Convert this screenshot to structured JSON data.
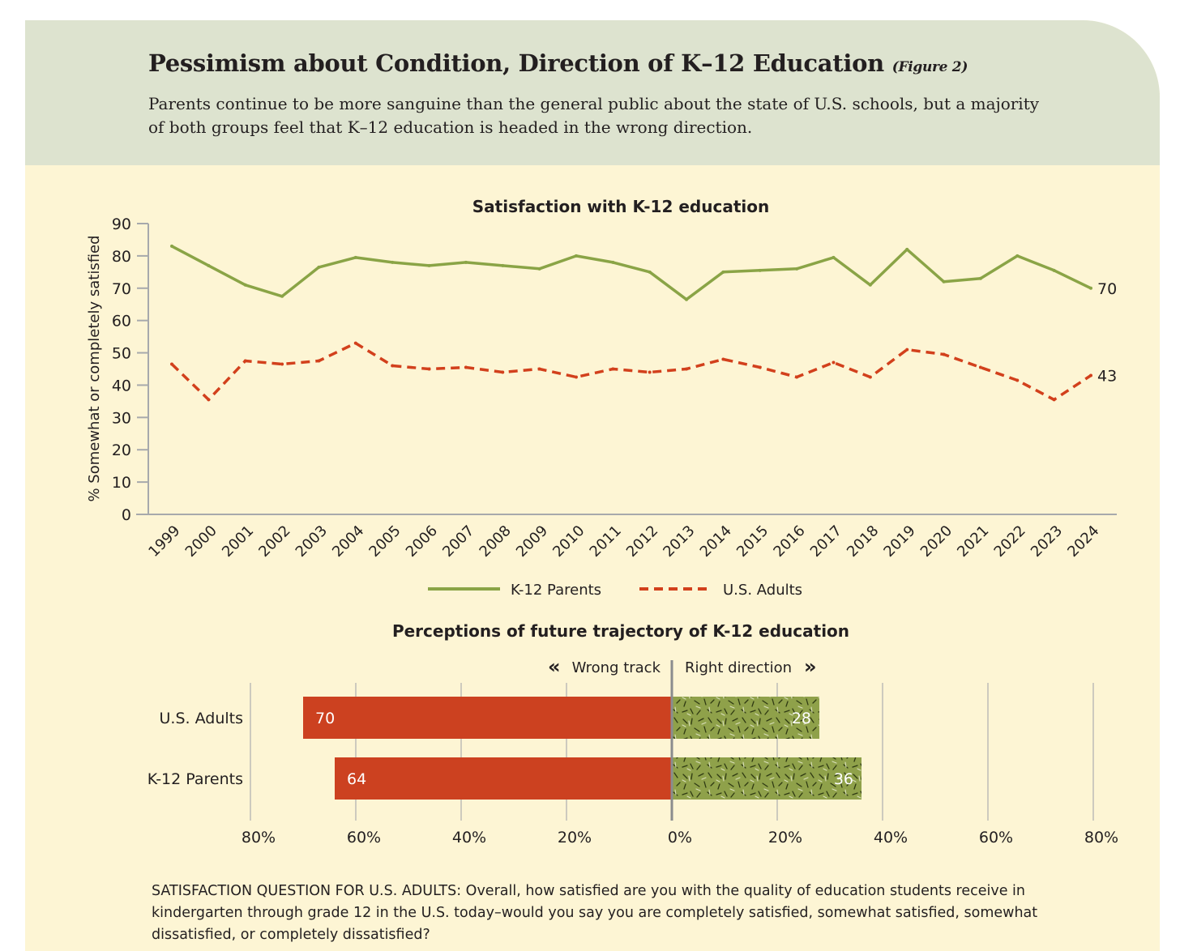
{
  "figure": {
    "title": "Pessimism about Condition, Direction of K–12 Education",
    "figure_tag": "(Figure 2)",
    "subtitle": "Parents continue to be more sanguine than the general public about the state of U.S. schools, but a majority of both groups feel that K–12 education is headed in the wrong direction.",
    "note": "SATISFACTION QUESTION FOR U.S. ADULTS: Overall, how satisfied are you with the quality of education students receive in kindergarten through grade 12 in the U.S. today–would you say you are completely satisfied, somewhat satisfied, somewhat dissatisfied, or completely dissatisfied?"
  },
  "chart_data": [
    {
      "type": "line",
      "title": "Satisfaction with K-12 education",
      "xlabel": "",
      "ylabel": "% Somewhat or completely satisfied",
      "ylim": [
        0,
        90
      ],
      "yticks": [
        0,
        10,
        20,
        30,
        40,
        50,
        60,
        70,
        80,
        90
      ],
      "x": [
        1999,
        2000,
        2001,
        2002,
        2003,
        2004,
        2005,
        2006,
        2007,
        2008,
        2009,
        2010,
        2011,
        2012,
        2013,
        2014,
        2015,
        2016,
        2017,
        2018,
        2019,
        2020,
        2021,
        2022,
        2023,
        2024
      ],
      "grid": false,
      "legend": "bottom",
      "series": [
        {
          "name": "K-12 Parents",
          "color": "#8aa446",
          "style": "solid",
          "values": [
            83,
            77,
            71,
            67.5,
            76.5,
            79.5,
            78,
            77,
            78,
            77,
            76,
            80,
            78,
            75,
            66.5,
            75,
            75.5,
            76,
            79.5,
            71,
            82,
            72,
            73,
            80,
            75.5,
            70
          ],
          "end_label": "70"
        },
        {
          "name": "U.S. Adults",
          "color": "#d2401c",
          "style": "dashed",
          "values": [
            46.5,
            35.5,
            47.5,
            46.5,
            47.5,
            53,
            46,
            45,
            45.5,
            44,
            45,
            42.5,
            45,
            44,
            45,
            48,
            45.5,
            42.5,
            47,
            42.5,
            51,
            49.5,
            45.5,
            41.5,
            35.5,
            43
          ],
          "end_label": "43"
        }
      ]
    },
    {
      "type": "bar",
      "orientation": "horizontal-diverging",
      "title": "Perceptions of future trajectory of K-12 education",
      "left_label": "Wrong track",
      "right_label": "Right direction",
      "left_marker": "«",
      "right_marker": "»",
      "categories": [
        "U.S. Adults",
        "K-12 Parents"
      ],
      "series": [
        {
          "name": "Wrong track",
          "color": "#cc4120",
          "values": [
            70,
            64
          ]
        },
        {
          "name": "Right direction",
          "color": "#8fa14a",
          "values": [
            28,
            36
          ]
        }
      ],
      "xlim": [
        -80,
        80
      ],
      "xticks": [
        "80%",
        "60%",
        "40%",
        "20%",
        "0%",
        "20%",
        "40%",
        "60%",
        "80%"
      ]
    }
  ]
}
